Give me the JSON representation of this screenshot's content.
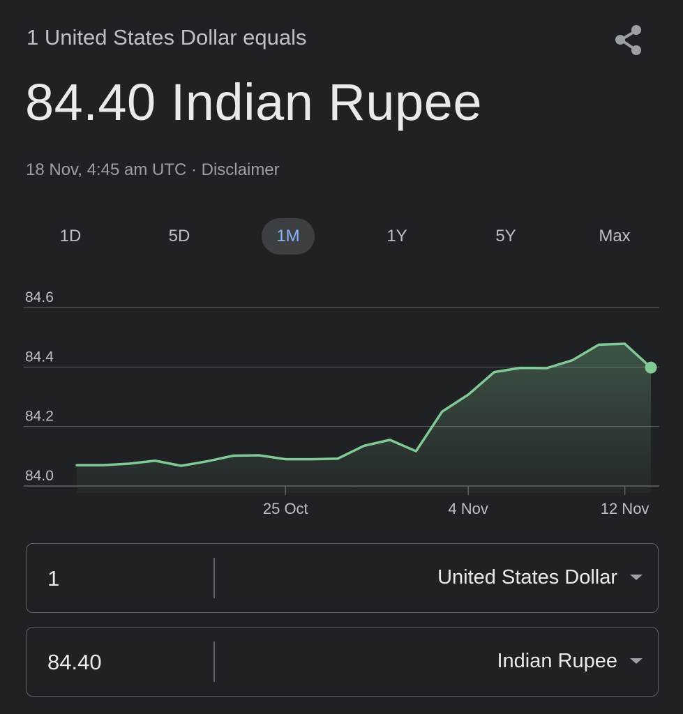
{
  "header": {
    "subtitle": "1 United States Dollar equals",
    "rate_display": "84.40 Indian Rupee",
    "timestamp": "18 Nov, 4:45 am UTC",
    "separator": " · ",
    "disclaimer": "Disclaimer",
    "share_icon": "share-icon"
  },
  "ranges": [
    {
      "label": "1D",
      "active": false
    },
    {
      "label": "5D",
      "active": false
    },
    {
      "label": "1M",
      "active": true
    },
    {
      "label": "1Y",
      "active": false
    },
    {
      "label": "5Y",
      "active": false
    },
    {
      "label": "Max",
      "active": false
    }
  ],
  "colors": {
    "background": "#202124",
    "line": "#81c995",
    "active_range": "#8ab4f8"
  },
  "chart_data": {
    "type": "area",
    "title": "",
    "xlabel": "",
    "ylabel": "",
    "ylim": [
      84.0,
      84.6
    ],
    "yticks": [
      "84.6",
      "84.4",
      "84.2",
      "84.0"
    ],
    "xtick_labels": [
      {
        "label": "25 Oct",
        "index": 8
      },
      {
        "label": "4 Nov",
        "index": 15
      },
      {
        "label": "12 Nov",
        "index": 21
      }
    ],
    "grid": true,
    "series": [
      {
        "values": [
          84.07,
          84.07,
          84.075,
          84.085,
          84.068,
          84.083,
          84.102,
          84.103,
          84.09,
          84.09,
          84.092,
          84.135,
          84.155,
          84.117,
          84.25,
          84.307,
          84.383,
          84.397,
          84.396,
          84.423,
          84.475,
          84.478,
          84.398
        ]
      }
    ]
  },
  "converter": {
    "from": {
      "amount": "1",
      "currency": "United States Dollar"
    },
    "to": {
      "amount": "84.40",
      "currency": "Indian Rupee"
    }
  }
}
